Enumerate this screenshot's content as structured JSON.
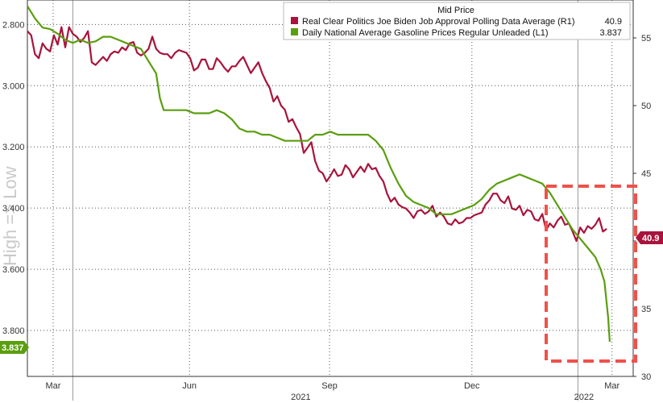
{
  "chart_data": {
    "type": "line",
    "legend": {
      "title": "Mid Price",
      "placement": "top-right",
      "entries": [
        {
          "label": "Real Clear Politics Joe Biden Job Approval Polling Data Average  (R1)",
          "value": "40.9",
          "color": "#a8143c"
        },
        {
          "label": "Daily National Average Gasoline Prices Regular Unleaded  (L1)",
          "value": "3.837",
          "color": "#5a9e0e"
        }
      ]
    },
    "left_axis": {
      "inverted": true,
      "range": [
        2.72,
        3.95
      ],
      "ticks": [
        "2.800",
        "3.000",
        "3.200",
        "3.400",
        "3.600",
        "3.800"
      ],
      "label": "High => Low",
      "last_value_label": "3.837"
    },
    "right_axis": {
      "range": [
        30,
        57.8
      ],
      "ticks": [
        "55",
        "50",
        "45",
        "40",
        "35",
        "30"
      ],
      "last_value_label": "40.9"
    },
    "x_axis": {
      "month_labels": [
        "Mar",
        "Jun",
        "Sep",
        "Dec",
        "Mar"
      ],
      "year_labels": [
        "2021",
        "2022"
      ]
    },
    "grid": true,
    "highlight_box": {
      "color": "#f0514a",
      "style": "dashed"
    },
    "series": [
      {
        "name": "Real Clear Politics Joe Biden Job Approval Polling Data Average",
        "axis": "right",
        "color": "#a8143c",
        "points": [
          [
            0,
            55.5
          ],
          [
            5,
            55.2
          ],
          [
            10,
            53.8
          ],
          [
            15,
            53.5
          ],
          [
            20,
            54.6
          ],
          [
            25,
            54.2
          ],
          [
            30,
            54.0
          ],
          [
            35,
            55.2
          ],
          [
            40,
            54.5
          ],
          [
            45,
            55.8
          ],
          [
            50,
            54.3
          ],
          [
            55,
            55.8
          ],
          [
            60,
            55.3
          ],
          [
            65,
            55.1
          ],
          [
            70,
            54.7
          ],
          [
            75,
            55.0
          ],
          [
            80,
            55.5
          ],
          [
            85,
            53.2
          ],
          [
            90,
            53.0
          ],
          [
            95,
            53.3
          ],
          [
            100,
            53.6
          ],
          [
            105,
            53.3
          ],
          [
            110,
            53.8
          ],
          [
            115,
            54.0
          ],
          [
            120,
            53.9
          ],
          [
            125,
            54.3
          ],
          [
            130,
            54.1
          ],
          [
            135,
            54.6
          ],
          [
            140,
            54.7
          ],
          [
            145,
            53.9
          ],
          [
            150,
            53.7
          ],
          [
            155,
            53.9
          ],
          [
            160,
            54.2
          ],
          [
            165,
            55.1
          ],
          [
            170,
            54.2
          ],
          [
            175,
            53.9
          ],
          [
            180,
            53.8
          ],
          [
            185,
            53.8
          ],
          [
            190,
            53.5
          ],
          [
            195,
            53.9
          ],
          [
            200,
            54.1
          ],
          [
            205,
            54.0
          ],
          [
            210,
            53.9
          ],
          [
            215,
            53.5
          ],
          [
            220,
            52.6
          ],
          [
            225,
            52.8
          ],
          [
            230,
            53.4
          ],
          [
            235,
            53.4
          ],
          [
            240,
            52.7
          ],
          [
            245,
            52.7
          ],
          [
            250,
            53.5
          ],
          [
            255,
            53.2
          ],
          [
            260,
            52.8
          ],
          [
            265,
            52.5
          ],
          [
            270,
            52.9
          ],
          [
            275,
            52.9
          ],
          [
            280,
            53.3
          ],
          [
            285,
            53.6
          ],
          [
            290,
            53.0
          ],
          [
            295,
            52.4
          ],
          [
            300,
            52.8
          ],
          [
            305,
            53.2
          ],
          [
            310,
            52.4
          ],
          [
            315,
            51.8
          ],
          [
            320,
            51.3
          ],
          [
            325,
            50.3
          ],
          [
            330,
            50.7
          ],
          [
            335,
            50.0
          ],
          [
            340,
            49.7
          ],
          [
            345,
            48.8
          ],
          [
            350,
            49.0
          ],
          [
            355,
            48.4
          ],
          [
            360,
            47.9
          ],
          [
            365,
            46.5
          ],
          [
            370,
            46.9
          ],
          [
            375,
            47.3
          ],
          [
            380,
            45.9
          ],
          [
            385,
            45.2
          ],
          [
            390,
            45.0
          ],
          [
            395,
            44.4
          ],
          [
            400,
            44.8
          ],
          [
            405,
            45.3
          ],
          [
            410,
            44.8
          ],
          [
            415,
            44.9
          ],
          [
            420,
            45.6
          ],
          [
            425,
            45.3
          ],
          [
            430,
            44.7
          ],
          [
            435,
            45.1
          ],
          [
            440,
            45.5
          ],
          [
            445,
            45.1
          ],
          [
            450,
            45.7
          ],
          [
            455,
            45.3
          ],
          [
            460,
            45.4
          ],
          [
            465,
            44.8
          ],
          [
            470,
            44.4
          ],
          [
            475,
            43.5
          ],
          [
            480,
            42.9
          ],
          [
            485,
            43.2
          ],
          [
            490,
            42.7
          ],
          [
            495,
            42.5
          ],
          [
            500,
            42.4
          ],
          [
            505,
            42.1
          ],
          [
            510,
            41.7
          ],
          [
            515,
            42.2
          ],
          [
            520,
            42.3
          ],
          [
            525,
            42.0
          ],
          [
            530,
            42.2
          ],
          [
            535,
            42.6
          ],
          [
            540,
            41.8
          ],
          [
            545,
            42.1
          ],
          [
            550,
            41.8
          ],
          [
            555,
            41.3
          ],
          [
            560,
            41.2
          ],
          [
            565,
            41.6
          ],
          [
            570,
            41.3
          ],
          [
            575,
            41.4
          ],
          [
            580,
            41.7
          ],
          [
            585,
            41.7
          ],
          [
            590,
            41.9
          ],
          [
            595,
            42.0
          ],
          [
            600,
            42.1
          ],
          [
            605,
            42.7
          ],
          [
            610,
            43.0
          ],
          [
            615,
            43.5
          ],
          [
            620,
            43.5
          ],
          [
            625,
            43.0
          ],
          [
            630,
            42.8
          ],
          [
            635,
            43.3
          ],
          [
            640,
            42.4
          ],
          [
            645,
            42.3
          ],
          [
            650,
            42.6
          ],
          [
            655,
            41.9
          ],
          [
            660,
            42.3
          ],
          [
            665,
            42.2
          ],
          [
            670,
            41.6
          ],
          [
            675,
            41.5
          ],
          [
            680,
            42.0
          ],
          [
            685,
            40.8
          ],
          [
            690,
            41.3
          ],
          [
            695,
            41.0
          ],
          [
            700,
            41.5
          ],
          [
            705,
            41.8
          ],
          [
            710,
            41.2
          ],
          [
            715,
            41.3
          ],
          [
            720,
            40.7
          ],
          [
            725,
            40.0
          ],
          [
            730,
            41.0
          ],
          [
            735,
            40.6
          ],
          [
            740,
            41.1
          ],
          [
            745,
            40.9
          ],
          [
            750,
            41.2
          ],
          [
            755,
            41.7
          ],
          [
            760,
            40.7
          ],
          [
            765,
            40.9
          ]
        ]
      },
      {
        "name": "Daily National Average Gasoline Prices Regular Unleaded",
        "axis": "left",
        "color": "#5a9e0e",
        "points": [
          [
            0,
            2.74
          ],
          [
            10,
            2.78
          ],
          [
            20,
            2.81
          ],
          [
            30,
            2.815
          ],
          [
            40,
            2.83
          ],
          [
            50,
            2.85
          ],
          [
            60,
            2.86
          ],
          [
            70,
            2.85
          ],
          [
            80,
            2.86
          ],
          [
            90,
            2.855
          ],
          [
            100,
            2.84
          ],
          [
            110,
            2.84
          ],
          [
            120,
            2.85
          ],
          [
            130,
            2.86
          ],
          [
            140,
            2.87
          ],
          [
            150,
            2.88
          ],
          [
            160,
            2.92
          ],
          [
            170,
            2.96
          ],
          [
            175,
            3.04
          ],
          [
            180,
            3.08
          ],
          [
            190,
            3.08
          ],
          [
            200,
            3.08
          ],
          [
            210,
            3.08
          ],
          [
            220,
            3.09
          ],
          [
            230,
            3.09
          ],
          [
            240,
            3.09
          ],
          [
            250,
            3.08
          ],
          [
            260,
            3.09
          ],
          [
            270,
            3.11
          ],
          [
            280,
            3.14
          ],
          [
            290,
            3.15
          ],
          [
            300,
            3.15
          ],
          [
            310,
            3.16
          ],
          [
            320,
            3.16
          ],
          [
            330,
            3.17
          ],
          [
            340,
            3.18
          ],
          [
            350,
            3.18
          ],
          [
            360,
            3.18
          ],
          [
            370,
            3.18
          ],
          [
            380,
            3.16
          ],
          [
            390,
            3.16
          ],
          [
            400,
            3.15
          ],
          [
            410,
            3.16
          ],
          [
            420,
            3.16
          ],
          [
            430,
            3.16
          ],
          [
            440,
            3.16
          ],
          [
            450,
            3.16
          ],
          [
            455,
            3.17
          ],
          [
            460,
            3.18
          ],
          [
            470,
            3.21
          ],
          [
            480,
            3.27
          ],
          [
            490,
            3.32
          ],
          [
            500,
            3.36
          ],
          [
            510,
            3.38
          ],
          [
            520,
            3.39
          ],
          [
            530,
            3.4
          ],
          [
            540,
            3.42
          ],
          [
            550,
            3.42
          ],
          [
            560,
            3.42
          ],
          [
            570,
            3.41
          ],
          [
            580,
            3.4
          ],
          [
            590,
            3.39
          ],
          [
            600,
            3.37
          ],
          [
            610,
            3.34
          ],
          [
            620,
            3.32
          ],
          [
            630,
            3.31
          ],
          [
            640,
            3.3
          ],
          [
            650,
            3.29
          ],
          [
            660,
            3.3
          ],
          [
            670,
            3.31
          ],
          [
            680,
            3.32
          ],
          [
            690,
            3.35
          ],
          [
            700,
            3.39
          ],
          [
            710,
            3.43
          ],
          [
            720,
            3.47
          ],
          [
            730,
            3.5
          ],
          [
            740,
            3.53
          ],
          [
            750,
            3.56
          ],
          [
            757,
            3.6
          ],
          [
            762,
            3.64
          ],
          [
            767,
            3.76
          ],
          [
            769,
            3.837
          ]
        ]
      }
    ]
  }
}
